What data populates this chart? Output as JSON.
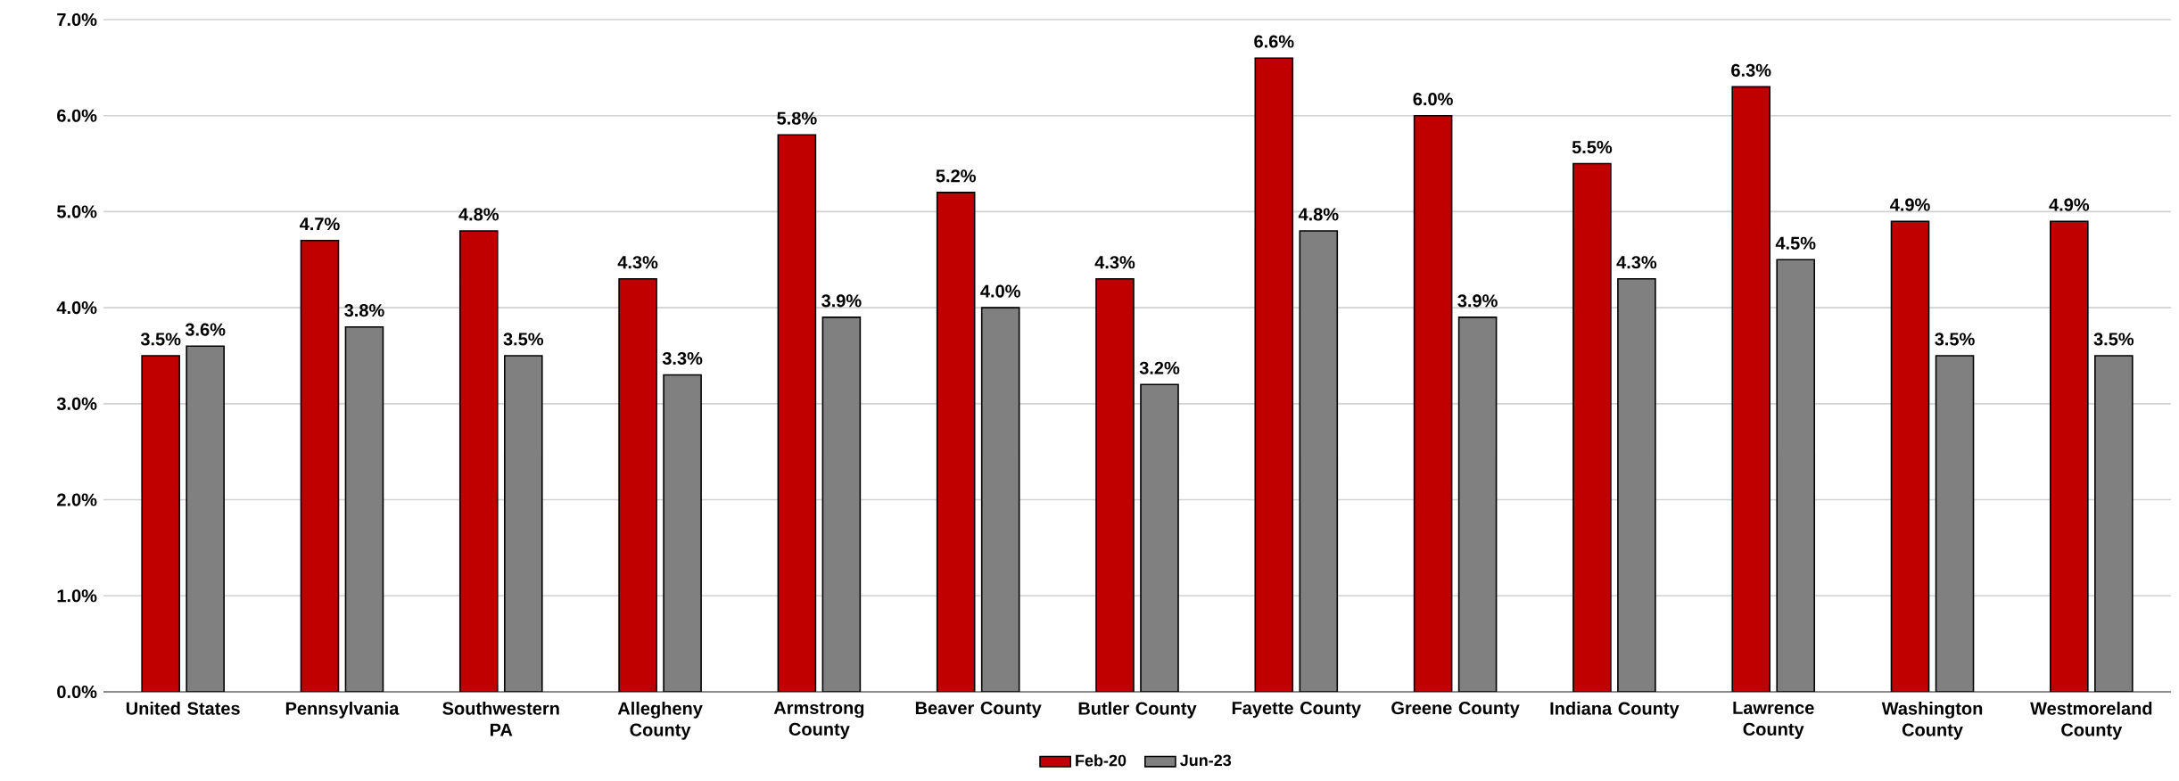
{
  "chart_data": {
    "type": "bar",
    "categories": [
      "United States",
      "Pennsylvania",
      "Southwestern PA",
      "Allegheny County",
      "Armstrong County",
      "Beaver County",
      "Butler County",
      "Fayette County",
      "Greene County",
      "Indiana County",
      "Lawrence County",
      "Washington County",
      "Westmoreland County"
    ],
    "series": [
      {
        "name": "Feb-20",
        "color": "#c00000",
        "values": [
          3.5,
          4.7,
          4.8,
          4.3,
          5.8,
          5.2,
          4.3,
          6.6,
          6.0,
          5.5,
          6.3,
          4.9,
          4.9
        ],
        "value_labels": [
          "3.5%",
          "4.7%",
          "4.8%",
          "4.3%",
          "5.8%",
          "5.2%",
          "4.3%",
          "6.6%",
          "6.0%",
          "5.5%",
          "6.3%",
          "4.9%",
          "4.9%"
        ]
      },
      {
        "name": "Jun-23",
        "color": "#808080",
        "values": [
          3.6,
          3.8,
          3.5,
          3.3,
          3.9,
          4.0,
          3.2,
          4.8,
          3.9,
          4.3,
          4.5,
          3.5,
          3.5
        ],
        "value_labels": [
          "3.6%",
          "3.8%",
          "3.5%",
          "3.3%",
          "3.9%",
          "4.0%",
          "3.2%",
          "4.8%",
          "3.9%",
          "4.3%",
          "4.5%",
          "3.5%",
          "3.5%"
        ]
      }
    ],
    "ylim": [
      0,
      7
    ],
    "yticks": [
      {
        "value": 0,
        "label": "0.0%"
      },
      {
        "value": 1,
        "label": "1.0%"
      },
      {
        "value": 2,
        "label": "2.0%"
      },
      {
        "value": 3,
        "label": "3.0%"
      },
      {
        "value": 4,
        "label": "4.0%"
      },
      {
        "value": 5,
        "label": "5.0%"
      },
      {
        "value": 6,
        "label": "6.0%"
      },
      {
        "value": 7,
        "label": "7.0%"
      }
    ],
    "grid": "y",
    "legend": "bottom"
  }
}
